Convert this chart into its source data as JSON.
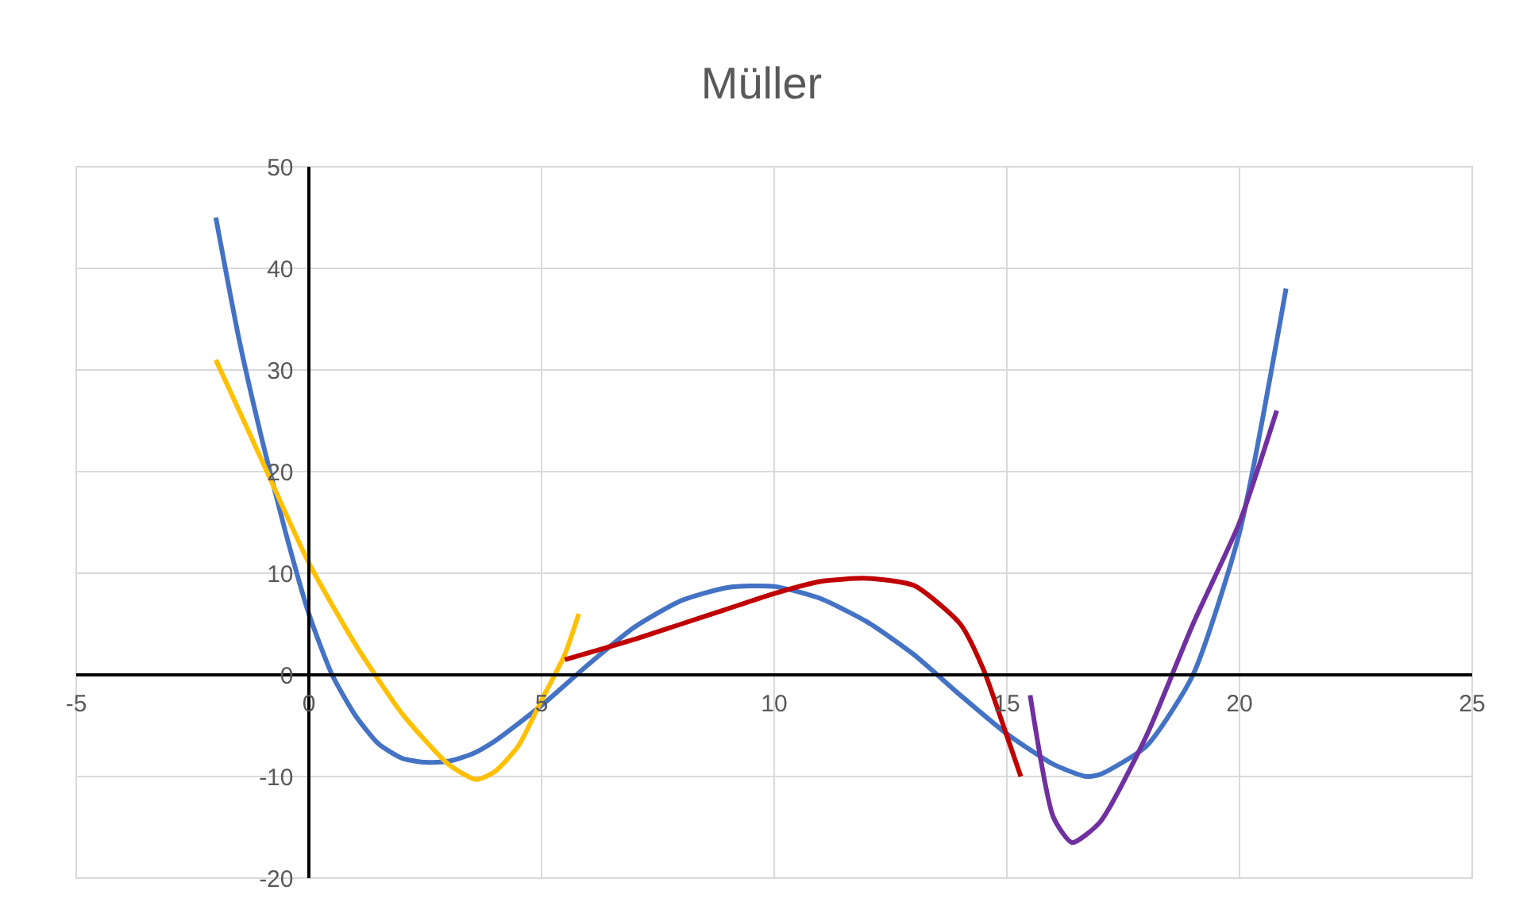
{
  "chart_data": {
    "type": "line",
    "title": "Müller",
    "xlim": [
      -5,
      25
    ],
    "ylim": [
      -20,
      50
    ],
    "xticks": [
      -5,
      0,
      5,
      10,
      15,
      20,
      25
    ],
    "yticks": [
      -20,
      -10,
      0,
      10,
      20,
      30,
      40,
      50
    ],
    "grid": true,
    "marker": "none",
    "line_style": "solid",
    "series": [
      {
        "color": "#4472c4",
        "x": [
          -2,
          -1.5,
          -1,
          -0.5,
          0,
          0.5,
          1,
          1.5,
          2,
          2.5,
          3,
          3.5,
          4,
          5,
          6,
          7,
          8,
          9,
          10,
          11,
          12,
          13,
          14,
          15,
          16,
          16.7,
          17,
          18,
          19,
          20,
          21
        ],
        "values": [
          45,
          33,
          23,
          14,
          6,
          0,
          -4,
          -6.8,
          -8.2,
          -8.6,
          -8.5,
          -7.8,
          -6.5,
          -3,
          1,
          4.7,
          7.3,
          8.6,
          8.7,
          7.5,
          5.2,
          2,
          -2,
          -5.8,
          -8.8,
          -10,
          -9.8,
          -7,
          0,
          14,
          38
        ]
      },
      {
        "color": "#ffc000",
        "x": [
          -2,
          -1,
          0,
          1,
          2,
          3,
          3.6,
          4,
          4.5,
          5,
          5.5,
          5.8
        ],
        "values": [
          31,
          21,
          11,
          3,
          -3.8,
          -8.8,
          -10.3,
          -9.5,
          -7,
          -2.5,
          2,
          6
        ]
      },
      {
        "color": "#c00000",
        "x": [
          5.5,
          7,
          8,
          9,
          10,
          11,
          12,
          13,
          14,
          14.5,
          15,
          15.3
        ],
        "values": [
          1.5,
          3.5,
          5,
          6.5,
          8,
          9.2,
          9.5,
          8.8,
          5,
          0.5,
          -6,
          -10
        ]
      },
      {
        "color": "#7030a0",
        "x": [
          15.5,
          16,
          16.4,
          17,
          18,
          19,
          20,
          20.8
        ],
        "values": [
          -2,
          -14,
          -16.5,
          -14.5,
          -6,
          5,
          15,
          26
        ]
      }
    ]
  }
}
